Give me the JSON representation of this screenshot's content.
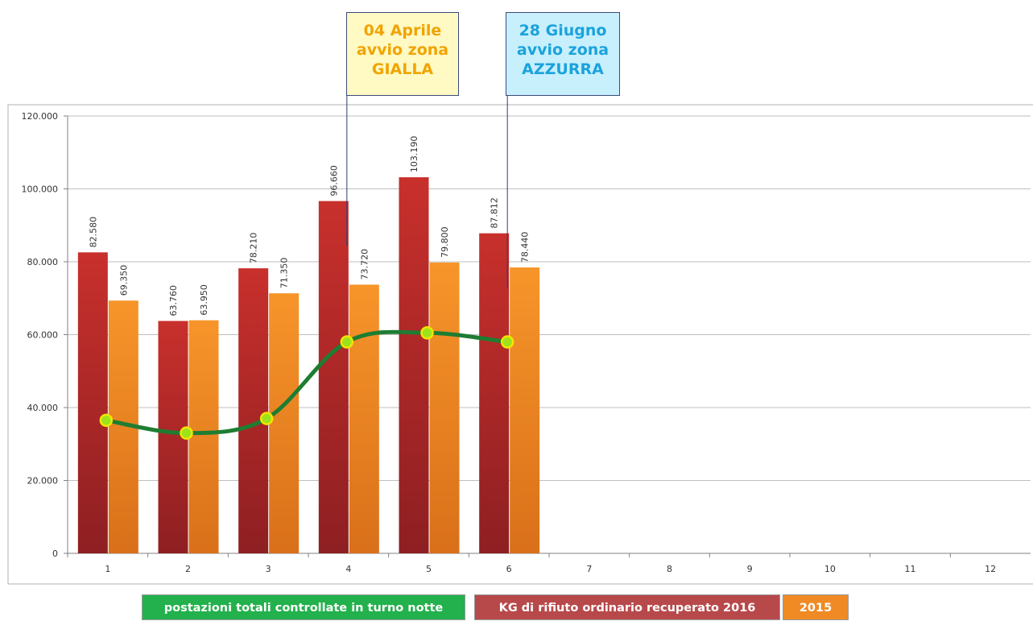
{
  "chart_data": {
    "type": "bar",
    "categories": [
      "1",
      "2",
      "3",
      "4",
      "5",
      "6",
      "7",
      "8",
      "9",
      "10",
      "11",
      "12"
    ],
    "series": [
      {
        "name": "KG di rifiuto ordinario recuperato 2016",
        "type": "bar",
        "color": "#b5282b",
        "values": [
          82580,
          63760,
          78210,
          96660,
          103190,
          87812,
          null,
          null,
          null,
          null,
          null,
          null
        ],
        "labels": [
          "82.580",
          "63.760",
          "78.210",
          "96.660",
          "103.190",
          "87.812"
        ]
      },
      {
        "name": "2015",
        "type": "bar",
        "color": "#f08a24",
        "values": [
          69350,
          63950,
          71350,
          73720,
          79800,
          78440,
          null,
          null,
          null,
          null,
          null,
          null
        ],
        "labels": [
          "69.350",
          "63.950",
          "71.350",
          "73.720",
          "79.800",
          "78.440"
        ]
      },
      {
        "name": "postazioni totali controllate in turno notte",
        "type": "line",
        "color": "#1e7d32",
        "values": [
          36500,
          33000,
          37000,
          58000,
          60500,
          58000,
          null,
          null,
          null,
          null,
          null,
          null
        ]
      }
    ],
    "ylim": [
      0,
      120000
    ],
    "yticks": [
      "0",
      "20.000",
      "40.000",
      "60.000",
      "80.000",
      "100.000",
      "120.000"
    ],
    "grid": true,
    "legend": "bottom"
  },
  "annotations": [
    {
      "lines": [
        "04 Aprile",
        "avvio zona",
        "GIALLA"
      ],
      "category": "4",
      "bg": "#fff9c4",
      "color": "#f0a400"
    },
    {
      "lines": [
        "28 Giugno",
        "avvio zona",
        "AZZURRA"
      ],
      "category": "6",
      "bg": "#c8effc",
      "color": "#1aa3dc"
    }
  ],
  "legend": {
    "line_label": "postazioni totali controllate in turno notte",
    "bar2016_label": "KG di rifiuto ordinario recuperato 2016",
    "bar2015_label": "2015",
    "line_bg": "#22b14c",
    "bar2016_bg": "#b8494b",
    "bar2015_bg": "#f08a24"
  }
}
